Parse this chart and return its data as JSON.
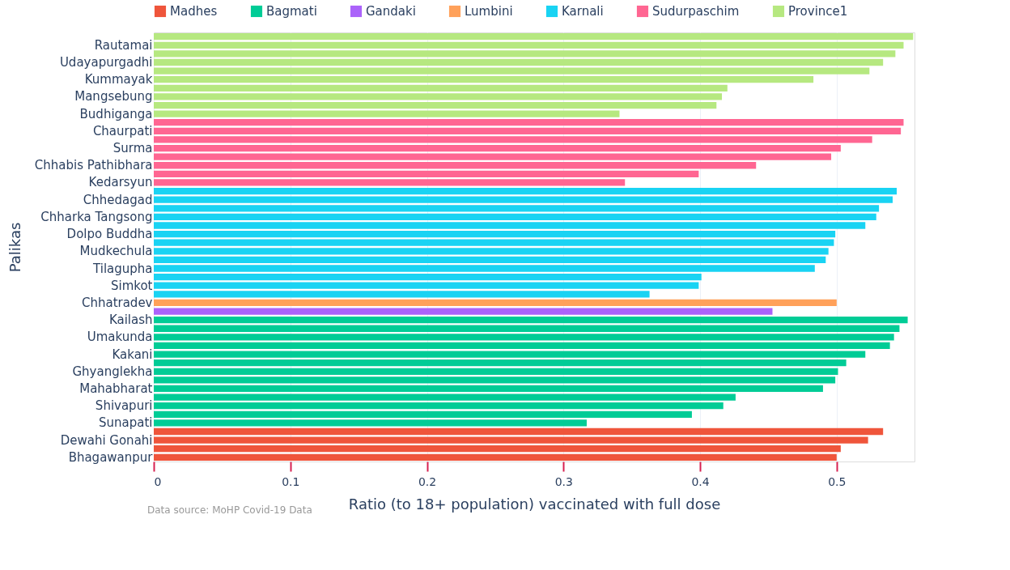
{
  "chart_data": {
    "type": "bar",
    "orientation": "horizontal",
    "xlabel": "Ratio (to 18+ population) vaccinated with full dose",
    "ylabel": "Palikas",
    "annotations": [
      "Data source: MoHP Covid-19 Data"
    ],
    "categories": [
      null,
      "Rautamai",
      null,
      "Udayapurgadhi",
      null,
      "Kummayak",
      null,
      "Mangsebung",
      null,
      "Budhiganga",
      null,
      "Chaurpati",
      null,
      "Surma",
      null,
      "Chhabis Pathibhara",
      null,
      "Kedarsyun",
      null,
      "Chhedagad",
      null,
      "Chharka Tangsong",
      null,
      "Dolpo Buddha",
      null,
      "Mudkechula",
      null,
      "Tilagupha",
      null,
      "Simkot",
      null,
      "Chhatradev",
      null,
      "Kailash",
      null,
      "Umakunda",
      null,
      "Kakani",
      null,
      "Ghyanglekha",
      null,
      "Mahabharat",
      null,
      "Shivapuri",
      null,
      "Sunapati",
      null,
      "Dewahi Gonahi",
      null,
      "Bhagawanpur"
    ],
    "series": [
      {
        "name": "Madhes",
        "color": "#ef553b",
        "values": [
          null,
          null,
          null,
          null,
          null,
          null,
          null,
          null,
          null,
          null,
          null,
          null,
          null,
          null,
          null,
          null,
          null,
          null,
          null,
          null,
          null,
          null,
          null,
          null,
          null,
          null,
          null,
          null,
          null,
          null,
          null,
          null,
          null,
          null,
          null,
          null,
          null,
          null,
          null,
          null,
          null,
          null,
          null,
          null,
          null,
          null,
          0.534,
          0.523,
          0.503,
          0.5
        ]
      },
      {
        "name": "Bagmati",
        "color": "#00cc96",
        "values": [
          null,
          null,
          null,
          null,
          null,
          null,
          null,
          null,
          null,
          null,
          null,
          null,
          null,
          null,
          null,
          null,
          null,
          null,
          null,
          null,
          null,
          null,
          null,
          null,
          null,
          null,
          null,
          null,
          null,
          null,
          null,
          null,
          null,
          0.552,
          0.546,
          0.542,
          0.539,
          0.521,
          0.507,
          0.501,
          0.499,
          0.49,
          0.426,
          0.417,
          0.394,
          0.317,
          null,
          null,
          null,
          null
        ]
      },
      {
        "name": "Gandaki",
        "color": "#ab63fa",
        "values": [
          null,
          null,
          null,
          null,
          null,
          null,
          null,
          null,
          null,
          null,
          null,
          null,
          null,
          null,
          null,
          null,
          null,
          null,
          null,
          null,
          null,
          null,
          null,
          null,
          null,
          null,
          null,
          null,
          null,
          null,
          null,
          null,
          0.453,
          null,
          null,
          null,
          null,
          null,
          null,
          null,
          null,
          null,
          null,
          null,
          null,
          null,
          null,
          null,
          null,
          null
        ]
      },
      {
        "name": "Lumbini",
        "color": "#ffa15a",
        "values": [
          null,
          null,
          null,
          null,
          null,
          null,
          null,
          null,
          null,
          null,
          null,
          null,
          null,
          null,
          null,
          null,
          null,
          null,
          null,
          null,
          null,
          null,
          null,
          null,
          null,
          null,
          null,
          null,
          null,
          null,
          null,
          0.5,
          null,
          null,
          null,
          null,
          null,
          null,
          null,
          null,
          null,
          null,
          null,
          null,
          null,
          null,
          null,
          null,
          null,
          null
        ]
      },
      {
        "name": "Karnali",
        "color": "#19d3f3",
        "values": [
          null,
          null,
          null,
          null,
          null,
          null,
          null,
          null,
          null,
          null,
          null,
          null,
          null,
          null,
          null,
          null,
          null,
          null,
          0.544,
          0.541,
          0.531,
          0.529,
          0.521,
          0.499,
          0.498,
          0.494,
          0.492,
          0.484,
          0.401,
          0.399,
          0.363,
          null,
          null,
          null,
          null,
          null,
          null,
          null,
          null,
          null,
          null,
          null,
          null,
          null,
          null,
          null,
          null,
          null,
          null,
          null
        ]
      },
      {
        "name": "Sudurpaschim",
        "color": "#ff6692",
        "values": [
          null,
          null,
          null,
          null,
          null,
          null,
          null,
          null,
          null,
          null,
          0.549,
          0.547,
          0.526,
          0.503,
          0.496,
          0.441,
          0.399,
          0.345,
          null,
          null,
          null,
          null,
          null,
          null,
          null,
          null,
          null,
          null,
          null,
          null,
          null,
          null,
          null,
          null,
          null,
          null,
          null,
          null,
          null,
          null,
          null,
          null,
          null,
          null,
          null,
          null,
          null,
          null,
          null,
          null
        ]
      },
      {
        "name": "Province1",
        "color": "#b6e880",
        "values": [
          0.556,
          0.549,
          0.543,
          0.534,
          0.524,
          0.483,
          0.42,
          0.416,
          0.412,
          0.341,
          null,
          null,
          null,
          null,
          null,
          null,
          null,
          null,
          null,
          null,
          null,
          null,
          null,
          null,
          null,
          null,
          null,
          null,
          null,
          null,
          null,
          null,
          null,
          null,
          null,
          null,
          null,
          null,
          null,
          null,
          null,
          null,
          null,
          null,
          null,
          null,
          null,
          null,
          null,
          null
        ]
      }
    ],
    "xlim": [
      0,
      0.557
    ],
    "xticks": [
      0,
      0.1,
      0.2,
      0.3,
      0.4,
      0.5
    ],
    "grid": "x",
    "legend": "top"
  }
}
